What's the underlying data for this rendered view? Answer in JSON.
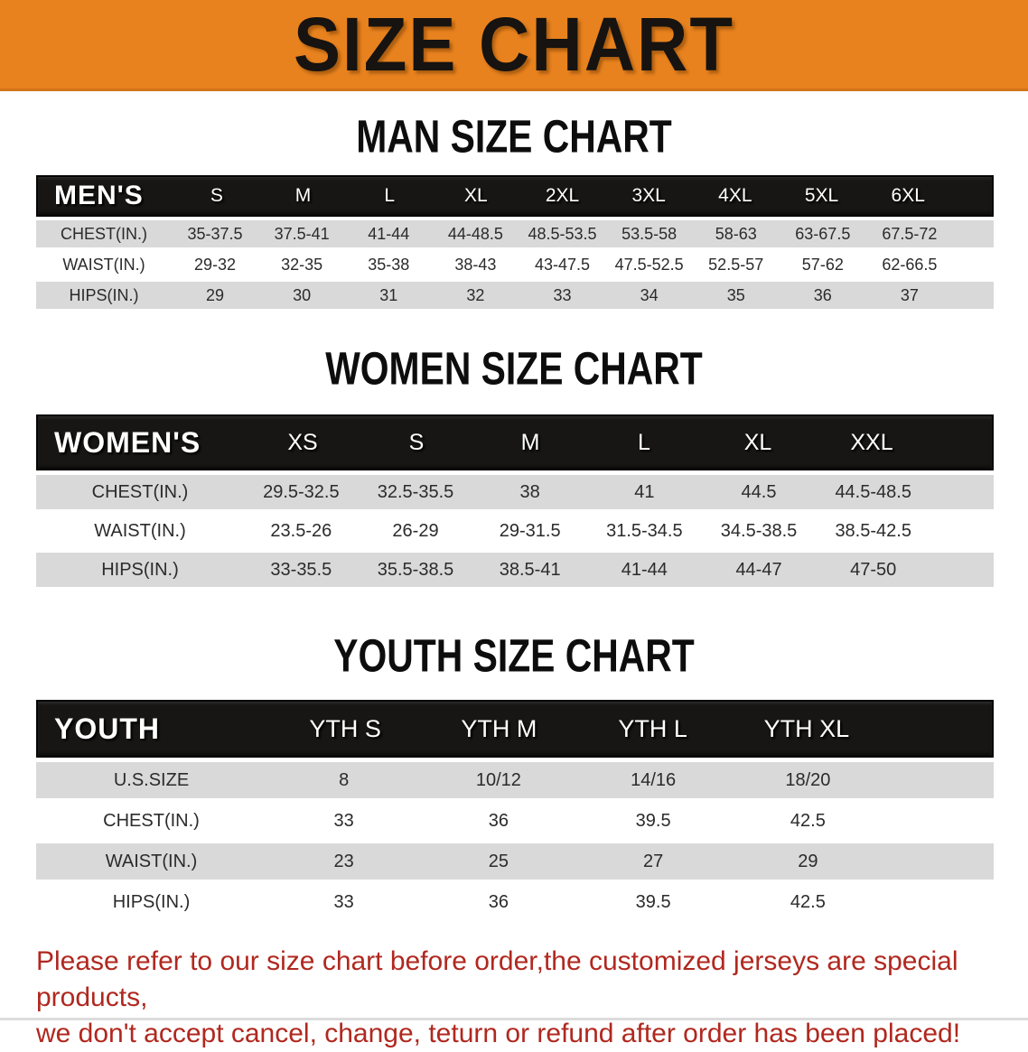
{
  "banner": {
    "title": "SIZE CHART",
    "bg_color": "#E8821E"
  },
  "colors": {
    "banner_orange": "#E8821E",
    "table_header_bg": "#171614",
    "row_gray": "#d9d9d9",
    "footer_red": "#b0281f"
  },
  "sections": [
    {
      "heading": "MAN SIZE CHART",
      "table": {
        "header": [
          "MEN'S",
          "S",
          "M",
          "L",
          "XL",
          "2XL",
          "3XL",
          "4XL",
          "5XL",
          "6XL"
        ],
        "rows": [
          [
            "CHEST(IN.)",
            "35-37.5",
            "37.5-41",
            "41-44",
            "44-48.5",
            "48.5-53.5",
            "53.5-58",
            "58-63",
            "63-67.5",
            "67.5-72"
          ],
          [
            "WAIST(IN.)",
            "29-32",
            "32-35",
            "35-38",
            "38-43",
            "43-47.5",
            "47.5-52.5",
            "52.5-57",
            "57-62",
            "62-66.5"
          ],
          [
            "HIPS(IN.)",
            "29",
            "30",
            "31",
            "32",
            "33",
            "34",
            "35",
            "36",
            "37"
          ]
        ]
      }
    },
    {
      "heading": "WOMEN SIZE CHART",
      "table": {
        "header": [
          "WOMEN'S",
          "XS",
          "S",
          "M",
          "L",
          "XL",
          "XXL"
        ],
        "rows": [
          [
            "CHEST(IN.)",
            "29.5-32.5",
            "32.5-35.5",
            "38",
            "41",
            "44.5",
            "44.5-48.5"
          ],
          [
            "WAIST(IN.)",
            "23.5-26",
            "26-29",
            "29-31.5",
            "31.5-34.5",
            "34.5-38.5",
            "38.5-42.5"
          ],
          [
            "HIPS(IN.)",
            "33-35.5",
            "35.5-38.5",
            "38.5-41",
            "41-44",
            "44-47",
            "47-50"
          ]
        ]
      }
    },
    {
      "heading": "YOUTH SIZE CHART",
      "table": {
        "header": [
          "YOUTH",
          "YTH S",
          "YTH M",
          "YTH L",
          "YTH XL"
        ],
        "rows": [
          [
            "U.S.SIZE",
            "8",
            "10/12",
            "14/16",
            "18/20"
          ],
          [
            "CHEST(IN.)",
            "33",
            "36",
            "39.5",
            "42.5"
          ],
          [
            "WAIST(IN.)",
            "23",
            "25",
            "27",
            "29"
          ],
          [
            "HIPS(IN.)",
            "33",
            "36",
            "39.5",
            "42.5"
          ]
        ]
      }
    }
  ],
  "footer": {
    "line1": "Please refer to our size chart before order,the customized jerseys are special products,",
    "line2": "we don't accept cancel, change, teturn or refund after order has been placed!"
  }
}
